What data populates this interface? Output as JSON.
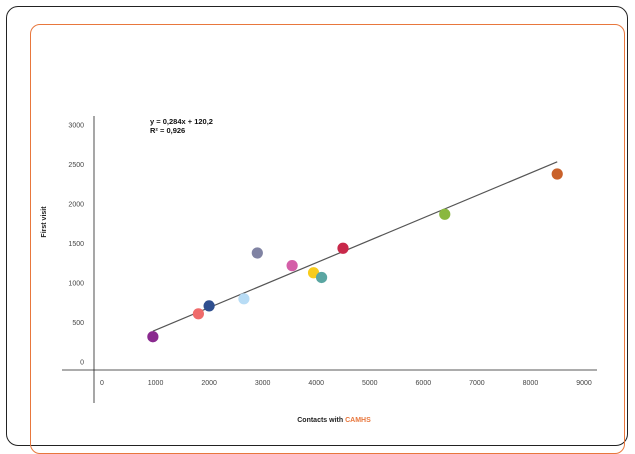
{
  "chart_data": {
    "type": "scatter",
    "xlabel_prefix": "Contacts with ",
    "xlabel_highlight": "CAMHS",
    "ylabel": "First visit",
    "xlim": [
      0,
      9000
    ],
    "ylim": [
      0,
      3000
    ],
    "xticks": [
      0,
      1000,
      2000,
      3000,
      4000,
      5000,
      6000,
      7000,
      8000,
      9000
    ],
    "yticks": [
      0,
      500,
      1000,
      1500,
      2000,
      2500,
      3000
    ],
    "grid": false,
    "colors": {
      "highlight": "#e8773d",
      "trendline": "#555555",
      "frame": "#222222"
    },
    "points": [
      {
        "x": 950,
        "y": 320,
        "color": "#8a2a8f"
      },
      {
        "x": 1800,
        "y": 610,
        "color": "#ef6b6b"
      },
      {
        "x": 2000,
        "y": 710,
        "color": "#2f4f8f"
      },
      {
        "x": 2650,
        "y": 800,
        "color": "#b8dcf5"
      },
      {
        "x": 2900,
        "y": 1380,
        "color": "#8083a3"
      },
      {
        "x": 3550,
        "y": 1220,
        "color": "#d45fa8"
      },
      {
        "x": 3950,
        "y": 1130,
        "color": "#f8cc1c"
      },
      {
        "x": 4100,
        "y": 1070,
        "color": "#5aa6a2"
      },
      {
        "x": 4500,
        "y": 1440,
        "color": "#c8284a"
      },
      {
        "x": 6400,
        "y": 1870,
        "color": "#8ab83f"
      },
      {
        "x": 8500,
        "y": 2380,
        "color": "#c9612a"
      }
    ],
    "trendline": {
      "slope": 0.284,
      "intercept": 120.2,
      "x_from": 950,
      "x_to": 8500,
      "equation": "y = 0,284x + 120,2",
      "r_squared": "R² = 0,926"
    }
  }
}
